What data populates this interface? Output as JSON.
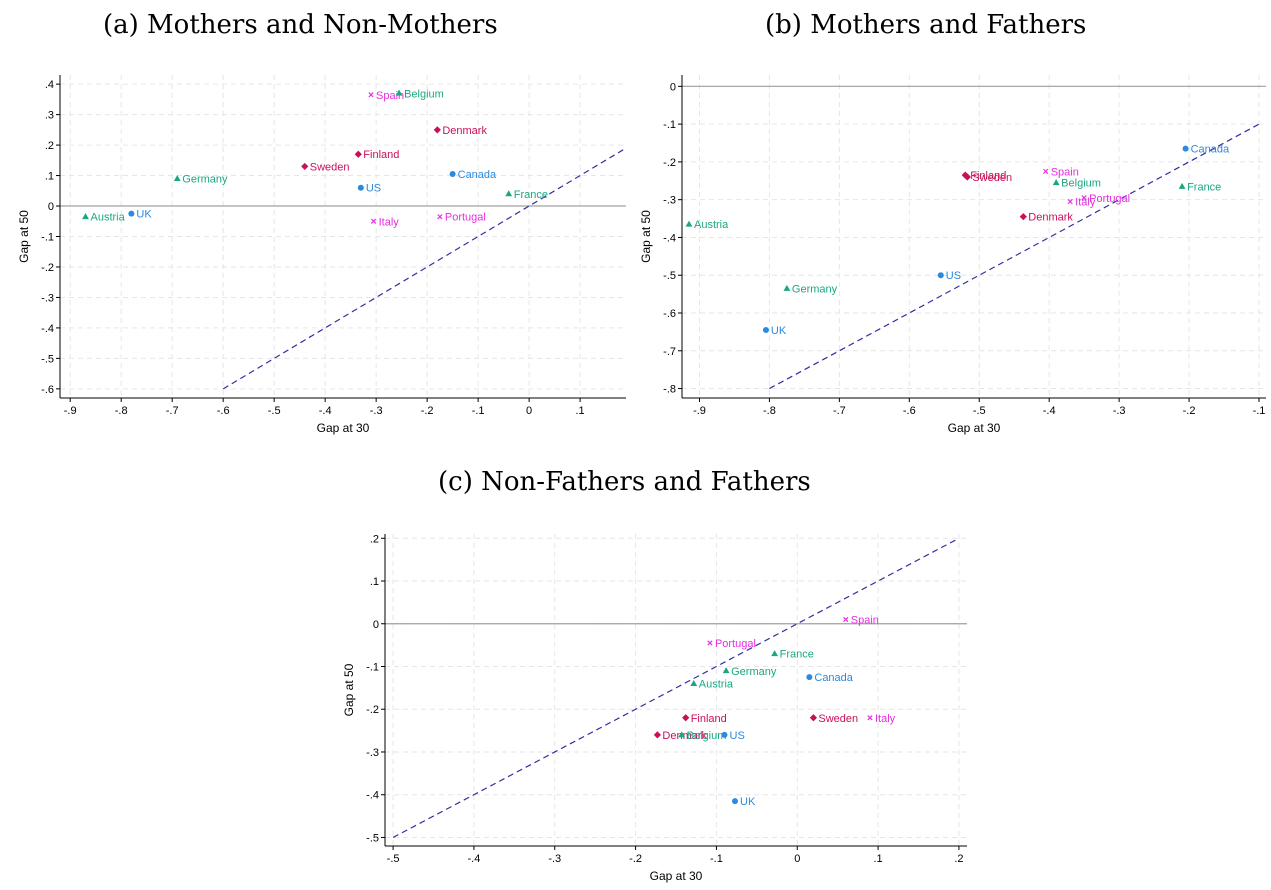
{
  "panel_titles": [
    "(a) Mothers and Non-Mothers",
    "(b) Mothers and Fathers",
    "(c) Non-Fathers and Fathers"
  ],
  "colors": {
    "green": "#1aa781",
    "blue": "#2a8ae0",
    "crimson": "#c8105a",
    "magenta": "#e52ee0",
    "diagonal": "#3030a0",
    "zero_line": "#a0a0a0",
    "grid": "#e6e6e6"
  },
  "chart_data": [
    {
      "type": "scatter",
      "title": "(a) Mothers and Non-Mothers",
      "xlabel": "Gap at 30",
      "ylabel": "Gap at 50",
      "xlim": [
        -0.92,
        0.19
      ],
      "ylim": [
        -0.63,
        0.43
      ],
      "xticks": [
        -0.9,
        -0.8,
        -0.7,
        -0.6,
        -0.5,
        -0.4,
        -0.3,
        -0.2,
        -0.1,
        0,
        0.1
      ],
      "xtick_labels": [
        "-.9",
        "-.8",
        "-.7",
        "-.6",
        "-.5",
        "-.4",
        "-.3",
        "-.2",
        "-.1",
        "0",
        ".1"
      ],
      "yticks": [
        -0.6,
        -0.5,
        -0.4,
        -0.3,
        -0.2,
        -0.1,
        0,
        0.1,
        0.2,
        0.3,
        0.4
      ],
      "ytick_labels": [
        "-.6",
        "-.5",
        "-.4",
        "-.3",
        "-.2",
        "-.1",
        "0",
        ".1",
        ".2",
        ".3",
        ".4"
      ],
      "diagonal": [
        [
          -0.6,
          -0.6
        ],
        [
          0.19,
          0.19
        ]
      ],
      "hline": 0,
      "points": [
        {
          "label": "Spain",
          "x": -0.31,
          "y": 0.365,
          "group": "magenta"
        },
        {
          "label": "Belgium",
          "x": -0.255,
          "y": 0.37,
          "group": "green"
        },
        {
          "label": "Denmark",
          "x": -0.18,
          "y": 0.25,
          "group": "crimson"
        },
        {
          "label": "Finland",
          "x": -0.335,
          "y": 0.17,
          "group": "crimson"
        },
        {
          "label": "Sweden",
          "x": -0.44,
          "y": 0.13,
          "group": "crimson"
        },
        {
          "label": "Canada",
          "x": -0.15,
          "y": 0.105,
          "group": "blue"
        },
        {
          "label": "Germany",
          "x": -0.69,
          "y": 0.09,
          "group": "green"
        },
        {
          "label": "US",
          "x": -0.33,
          "y": 0.06,
          "group": "blue"
        },
        {
          "label": "France",
          "x": -0.04,
          "y": 0.04,
          "group": "green"
        },
        {
          "label": "Austria",
          "x": -0.87,
          "y": -0.035,
          "group": "green"
        },
        {
          "label": "UK",
          "x": -0.78,
          "y": -0.025,
          "group": "blue"
        },
        {
          "label": "Portugal",
          "x": -0.175,
          "y": -0.035,
          "group": "magenta"
        },
        {
          "label": "Italy",
          "x": -0.305,
          "y": -0.05,
          "group": "magenta"
        }
      ]
    },
    {
      "type": "scatter",
      "title": "(b) Mothers and Fathers",
      "xlabel": "Gap at 30",
      "ylabel": "Gap at 50",
      "xlim": [
        -0.925,
        -0.09
      ],
      "ylim": [
        -0.825,
        0.03
      ],
      "xticks": [
        -0.9,
        -0.8,
        -0.7,
        -0.6,
        -0.5,
        -0.4,
        -0.3,
        -0.2,
        -0.1
      ],
      "xtick_labels": [
        "-.9",
        "-.8",
        "-.7",
        "-.6",
        "-.5",
        "-.4",
        "-.3",
        "-.2",
        "-.1"
      ],
      "yticks": [
        -0.8,
        -0.7,
        -0.6,
        -0.5,
        -0.4,
        -0.3,
        -0.2,
        -0.1,
        0
      ],
      "ytick_labels": [
        "-.8",
        "-.7",
        "-.6",
        "-.5",
        "-.4",
        "-.3",
        "-.2",
        "-.1",
        "0"
      ],
      "diagonal": [
        [
          -0.8,
          -0.8
        ],
        [
          -0.1,
          -0.1
        ]
      ],
      "hline": 0,
      "points": [
        {
          "label": "Canada",
          "x": -0.205,
          "y": -0.165,
          "group": "blue"
        },
        {
          "label": "Spain",
          "x": -0.405,
          "y": -0.225,
          "group": "magenta"
        },
        {
          "label": "Finland",
          "x": -0.52,
          "y": -0.235,
          "group": "crimson"
        },
        {
          "label": "Sweden",
          "x": -0.517,
          "y": -0.24,
          "group": "crimson"
        },
        {
          "label": "Belgium",
          "x": -0.39,
          "y": -0.255,
          "group": "green"
        },
        {
          "label": "France",
          "x": -0.21,
          "y": -0.265,
          "group": "green"
        },
        {
          "label": "Portugal",
          "x": -0.35,
          "y": -0.295,
          "group": "magenta"
        },
        {
          "label": "Italy",
          "x": -0.37,
          "y": -0.305,
          "group": "magenta"
        },
        {
          "label": "Denmark",
          "x": -0.437,
          "y": -0.345,
          "group": "crimson"
        },
        {
          "label": "Austria",
          "x": -0.915,
          "y": -0.365,
          "group": "green"
        },
        {
          "label": "US",
          "x": -0.555,
          "y": -0.5,
          "group": "blue"
        },
        {
          "label": "Germany",
          "x": -0.775,
          "y": -0.535,
          "group": "green"
        },
        {
          "label": "UK",
          "x": -0.805,
          "y": -0.645,
          "group": "blue"
        }
      ]
    },
    {
      "type": "scatter",
      "title": "(c) Non-Fathers and Fathers",
      "xlabel": "Gap at 30",
      "ylabel": "Gap at 50",
      "xlim": [
        -0.51,
        0.21
      ],
      "ylim": [
        -0.52,
        0.21
      ],
      "xticks": [
        -0.5,
        -0.4,
        -0.3,
        -0.2,
        -0.1,
        0,
        0.1,
        0.2
      ],
      "xtick_labels": [
        "-.5",
        "-.4",
        "-.3",
        "-.2",
        "-.1",
        "0",
        ".1",
        ".2"
      ],
      "yticks": [
        -0.5,
        -0.4,
        -0.3,
        -0.2,
        -0.1,
        0,
        0.1,
        0.2
      ],
      "ytick_labels": [
        "-.5",
        "-.4",
        "-.3",
        "-.2",
        "-.1",
        "0",
        ".1",
        ".2"
      ],
      "diagonal": [
        [
          -0.5,
          -0.5
        ],
        [
          0.2,
          0.2
        ]
      ],
      "hline": 0,
      "points": [
        {
          "label": "Spain",
          "x": 0.06,
          "y": 0.01,
          "group": "magenta"
        },
        {
          "label": "Portugal",
          "x": -0.108,
          "y": -0.045,
          "group": "magenta"
        },
        {
          "label": "France",
          "x": -0.028,
          "y": -0.07,
          "group": "green"
        },
        {
          "label": "Germany",
          "x": -0.088,
          "y": -0.11,
          "group": "green"
        },
        {
          "label": "Canada",
          "x": 0.015,
          "y": -0.125,
          "group": "blue"
        },
        {
          "label": "Austria",
          "x": -0.128,
          "y": -0.14,
          "group": "green"
        },
        {
          "label": "Finland",
          "x": -0.138,
          "y": -0.22,
          "group": "crimson"
        },
        {
          "label": "Sweden",
          "x": 0.02,
          "y": -0.22,
          "group": "crimson"
        },
        {
          "label": "Italy",
          "x": 0.09,
          "y": -0.22,
          "group": "magenta"
        },
        {
          "label": "Denmark",
          "x": -0.173,
          "y": -0.26,
          "group": "crimson"
        },
        {
          "label": "Belgium",
          "x": -0.143,
          "y": -0.26,
          "group": "green"
        },
        {
          "label": "US",
          "x": -0.09,
          "y": -0.26,
          "group": "blue"
        },
        {
          "label": "UK",
          "x": -0.077,
          "y": -0.415,
          "group": "blue"
        }
      ]
    }
  ]
}
